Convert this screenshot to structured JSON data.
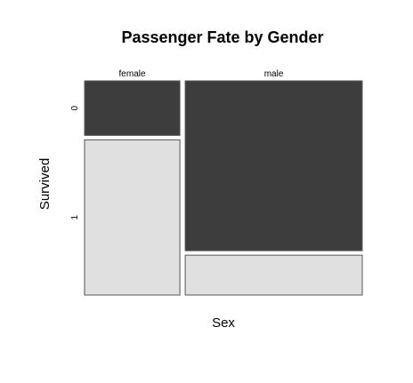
{
  "chart_data": {
    "type": "mosaic",
    "title": "Passenger Fate by Gender",
    "xlabel": "Sex",
    "ylabel": "Survived",
    "x_categories": [
      "female",
      "male"
    ],
    "y_categories": [
      "0",
      "1"
    ],
    "x_proportions": [
      0.35,
      0.65
    ],
    "cells": [
      {
        "sex": "female",
        "survived": "0",
        "proportion": 0.26,
        "color": "#3d3d3d"
      },
      {
        "sex": "female",
        "survived": "1",
        "proportion": 0.74,
        "color": "#e0e0e0"
      },
      {
        "sex": "male",
        "survived": "0",
        "proportion": 0.81,
        "color": "#3d3d3d"
      },
      {
        "sex": "male",
        "survived": "1",
        "proportion": 0.19,
        "color": "#e0e0e0"
      }
    ],
    "colors": {
      "0": "#3d3d3d",
      "1": "#e0e0e0",
      "border": "#555555"
    }
  }
}
